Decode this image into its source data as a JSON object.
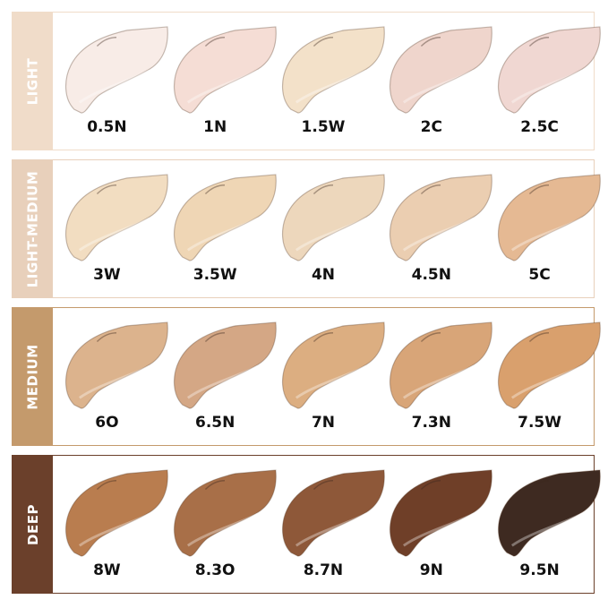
{
  "groups": [
    {
      "name": "LIGHT",
      "color": "#f0dcc9",
      "shades": [
        {
          "label": "0.5N",
          "color": "#f8ece7"
        },
        {
          "label": "1N",
          "color": "#f5ddd5"
        },
        {
          "label": "1.5W",
          "color": "#f3e1c9"
        },
        {
          "label": "2C",
          "color": "#efd5cc"
        },
        {
          "label": "2.5C",
          "color": "#f0d7d2"
        }
      ]
    },
    {
      "name": "LIGHT-MEDIUM",
      "color": "#e8d0bb",
      "shades": [
        {
          "label": "3W",
          "color": "#f2ddc1"
        },
        {
          "label": "3.5W",
          "color": "#efd6b5"
        },
        {
          "label": "4N",
          "color": "#edd7bc"
        },
        {
          "label": "4.5N",
          "color": "#ebceb1"
        },
        {
          "label": "5C",
          "color": "#e5b993"
        }
      ]
    },
    {
      "name": "MEDIUM",
      "color": "#c49a6c",
      "shades": [
        {
          "label": "6O",
          "color": "#dcb38d"
        },
        {
          "label": "6.5N",
          "color": "#d4a785"
        },
        {
          "label": "7N",
          "color": "#dcae81"
        },
        {
          "label": "7.3N",
          "color": "#d8a578"
        },
        {
          "label": "7.5W",
          "color": "#d9a06d"
        }
      ]
    },
    {
      "name": "DEEP",
      "color": "#6b402b",
      "shades": [
        {
          "label": "8W",
          "color": "#b97d4f"
        },
        {
          "label": "8.3O",
          "color": "#a86f48"
        },
        {
          "label": "8.7N",
          "color": "#8e5839"
        },
        {
          "label": "9N",
          "color": "#6f3f28"
        },
        {
          "label": "9.5N",
          "color": "#3e2a21"
        }
      ]
    }
  ]
}
